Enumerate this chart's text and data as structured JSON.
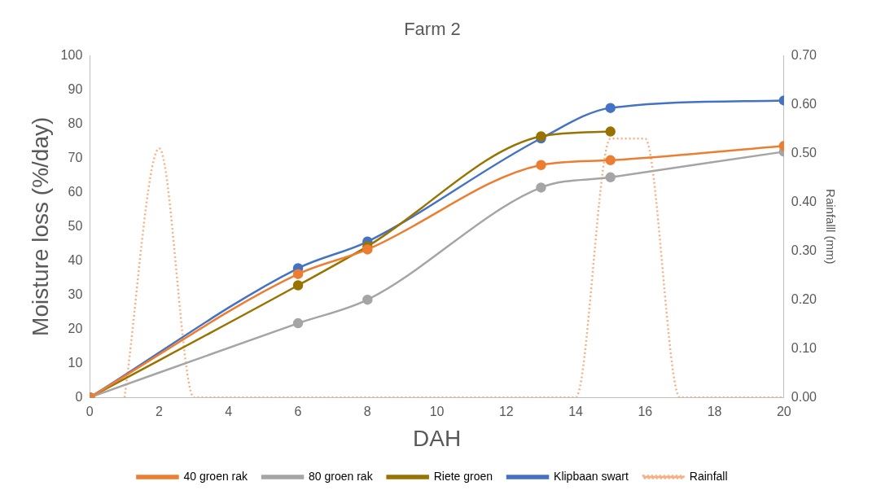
{
  "chart_data": {
    "type": "line",
    "title": "Farm 2",
    "xlabel": "DAH",
    "ylabel": "Moisture loss (%/day)",
    "y2label": "Rainfalll (mm)",
    "x": [
      0,
      6,
      8,
      13,
      15,
      20
    ],
    "series": [
      {
        "name": "40 groen rak",
        "color": "#ed7d31",
        "values": [
          0,
          36.1,
          43.3,
          68,
          69.4,
          73.6
        ]
      },
      {
        "name": "80 groen rak",
        "color": "#a5a5a5",
        "values": [
          0,
          21.7,
          28.6,
          61.4,
          64.4,
          71.9
        ]
      },
      {
        "name": "Riete groen",
        "color": "#997300",
        "values": [
          0,
          32.8,
          44.2,
          76.4,
          77.8,
          null
        ]
      },
      {
        "name": "Klipbaan swart",
        "color": "#4472c4",
        "values": [
          0,
          37.8,
          45.6,
          75.8,
          84.7,
          86.9
        ]
      },
      {
        "name": "Rainfall",
        "color": "#f4b183",
        "axis": "y2",
        "marker": "none",
        "line_style": "dotted",
        "x": [
          1,
          2,
          3,
          13,
          14,
          15,
          16,
          17,
          20
        ],
        "values": [
          0,
          0.51,
          0,
          0,
          0,
          0.53,
          0.53,
          0,
          0
        ]
      }
    ],
    "xlim": [
      0,
      20
    ],
    "xticks": [
      0,
      2,
      4,
      6,
      8,
      10,
      12,
      14,
      16,
      18,
      20
    ],
    "ylim": [
      0,
      100
    ],
    "yticks": [
      0,
      10,
      20,
      30,
      40,
      50,
      60,
      70,
      80,
      90,
      100
    ],
    "y2lim": [
      0,
      0.7
    ],
    "y2ticks": [
      {
        "value": 0,
        "label": "0.00"
      },
      {
        "value": 0.1,
        "label": "0.10"
      },
      {
        "value": 0.2,
        "label": "0.20"
      },
      {
        "value": 0.3,
        "label": "0.30"
      },
      {
        "value": 0.4,
        "label": "0.40"
      },
      {
        "value": 0.5,
        "label": "0.50"
      },
      {
        "value": 0.6,
        "label": "0.60"
      },
      {
        "value": 0.7,
        "label": "0.70"
      }
    ],
    "grid": false,
    "legend": "bottom",
    "marker": "circle",
    "line_style": "solid"
  }
}
